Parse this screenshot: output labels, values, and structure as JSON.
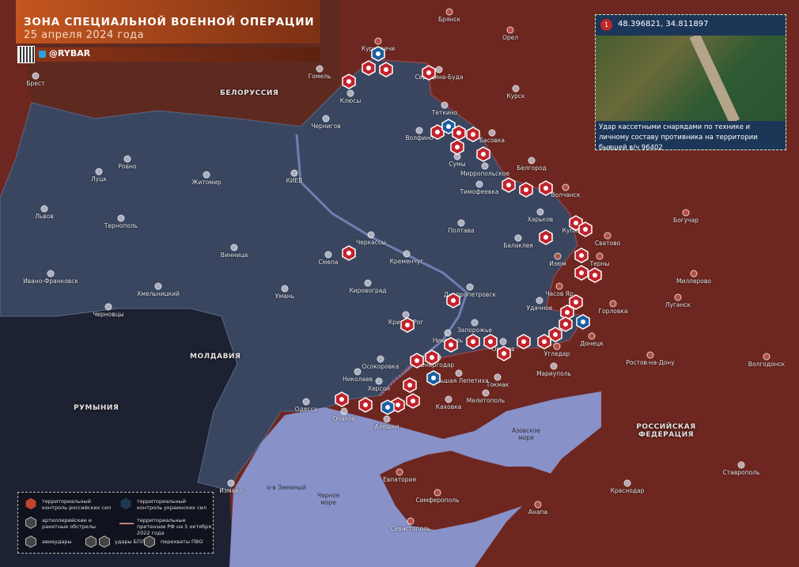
{
  "header": {
    "title": "ЗОНА СПЕЦИАЛЬНОЙ ВОЕННОЙ ОПЕРАЦИИ",
    "date": "25 апреля 2024 года",
    "telegram": "@RYBAR"
  },
  "inset": {
    "number": "1",
    "coordinates": "48.396821, 34.811897",
    "caption": "Удар кассетными снарядами по технике и личному составу противника на территории бывшей в/ч 96402"
  },
  "countries": {
    "belarus": "БЕЛОРУССИЯ",
    "moldova": "МОЛДАВИЯ",
    "romania": "РУМЫНИЯ",
    "russia": "РОССИЙСКАЯ ФЕДЕРАЦИЯ"
  },
  "seas": {
    "black_sea": "Черное море",
    "azov_sea": "Азовское море",
    "snake_island": "о-в Змеиный"
  },
  "cities": [
    "Брянск",
    "Орел",
    "Курск",
    "Белгород",
    "Гомель",
    "Брест",
    "Курковичи",
    "Середина-Буда",
    "Клюсы",
    "Чернигов",
    "Теткино",
    "Волфино",
    "Басовка",
    "Сумы",
    "Мирропольское",
    "Тимофеевка",
    "Волчанск",
    "Харьков",
    "Купянск",
    "Сватово",
    "Балаклея",
    "Изюм",
    "Терны",
    "Богучар",
    "Миллерово",
    "Часов Яр",
    "Горловка",
    "Луганск",
    "Удачное",
    "Донецк",
    "Угледар",
    "Мариуполь",
    "Ростов-на-Дону",
    "Волгодонск",
    "Ровно",
    "Луцк",
    "Житомир",
    "КИЕВ",
    "Львов",
    "Тернополь",
    "Полтава",
    "Черкассы",
    "Кременчуг",
    "Винница",
    "Смела",
    "Ивано-Франковск",
    "Хмельницкий",
    "Умань",
    "Кировоград",
    "Днепропетровск",
    "Черновцы",
    "Кривой Рог",
    "Запорожье",
    "Никополь",
    "Энергодар",
    "Орехов",
    "Осокоровка",
    "Токмак",
    "Большая Лепетиха",
    "Николаев",
    "Херсон",
    "Каховка",
    "Мелитополь",
    "Одесса",
    "Очаков",
    "Алешки",
    "Ставрополь",
    "Краснодар",
    "Евпатория",
    "Симферополь",
    "Анапа",
    "Севастополь",
    "Измаил"
  ],
  "legend": {
    "russian_control": "территориальный контроль российских сил",
    "ukrainian_control": "территориальный контроль украинских сил",
    "artillery": "артиллерийские и ракетные обстрелы",
    "claims": "территориальные претензии РФ на 5 октября 2022 года",
    "airstrikes": "авиаудары",
    "uav": "удары БПЛА",
    "air_defense": "перехваты ПВО"
  },
  "colors": {
    "russian_territory": "#6e2720",
    "ukrainian_territory": "#3a4660",
    "sea": "#8891c8",
    "marker_red": "#c0242c",
    "marker_blue": "#1d5fa0"
  }
}
